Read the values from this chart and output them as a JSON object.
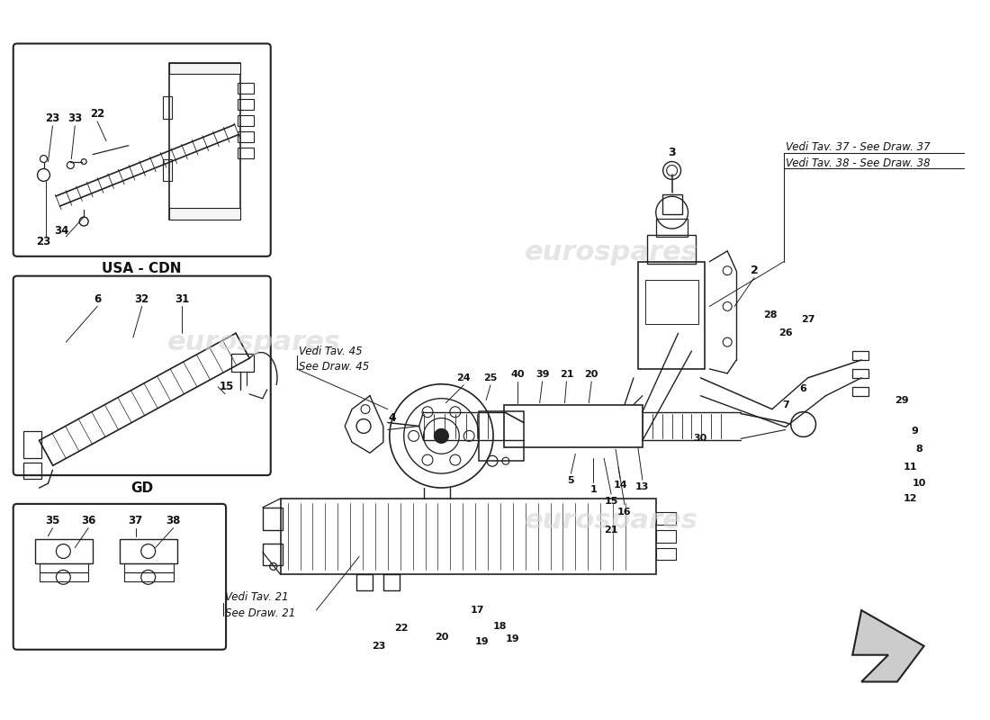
{
  "bg_color": "#ffffff",
  "line_color": "#222222",
  "text_color": "#111111",
  "wm_color": "#d0d0d0",
  "annotations": {
    "see37": "Vedi Tav. 37 - See Draw. 37",
    "see38": "Vedi Tav. 38 - See Draw. 38",
    "see45_1": "Vedi Tav. 45",
    "see45_2": "See Draw. 45",
    "see21_1": "Vedi Tav. 21",
    "see21_2": "See Draw. 21"
  },
  "box_usa_cdn": "USA - CDN",
  "box_gd": "GD"
}
